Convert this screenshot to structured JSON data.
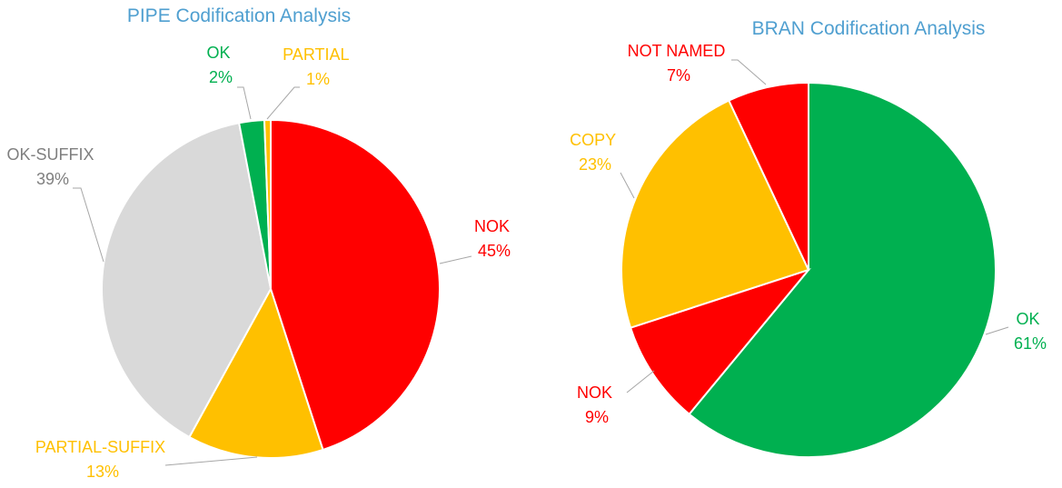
{
  "colors": {
    "title": "#4f9fd0",
    "red": "#ff0000",
    "orange": "#ffc000",
    "green": "#00b050",
    "grey": "#d9d9d9",
    "grey_text": "#7f7f7f"
  },
  "chart_data": [
    {
      "type": "pie",
      "title": "PIPE Codification Analysis",
      "legend": "none",
      "slices": [
        {
          "label": "NOK",
          "percent_label": "45%",
          "value": 45,
          "color": "#ff0000",
          "text_color": "#ff0000"
        },
        {
          "label": "PARTIAL-SUFFIX",
          "percent_label": "13%",
          "value": 13,
          "color": "#ffc000",
          "text_color": "#ffc000"
        },
        {
          "label": "OK-SUFFIX",
          "percent_label": "39%",
          "value": 39,
          "color": "#d9d9d9",
          "text_color": "#7f7f7f"
        },
        {
          "label": "OK",
          "percent_label": "2%",
          "value": 2.4,
          "color": "#00b050",
          "text_color": "#00b050"
        },
        {
          "label": "PARTIAL",
          "percent_label": "1%",
          "value": 0.6,
          "color": "#ffc000",
          "text_color": "#ffc000"
        }
      ]
    },
    {
      "type": "pie",
      "title": "BRAN Codification Analysis",
      "legend": "none",
      "slices": [
        {
          "label": "OK",
          "percent_label": "61%",
          "value": 61,
          "color": "#00b050",
          "text_color": "#00b050"
        },
        {
          "label": "NOK",
          "percent_label": "9%",
          "value": 9,
          "color": "#ff0000",
          "text_color": "#ff0000"
        },
        {
          "label": "COPY",
          "percent_label": "23%",
          "value": 23,
          "color": "#ffc000",
          "text_color": "#ffc000"
        },
        {
          "label": "NOT NAMED",
          "percent_label": "7%",
          "value": 7,
          "color": "#ff0000",
          "text_color": "#ff0000"
        }
      ]
    }
  ]
}
